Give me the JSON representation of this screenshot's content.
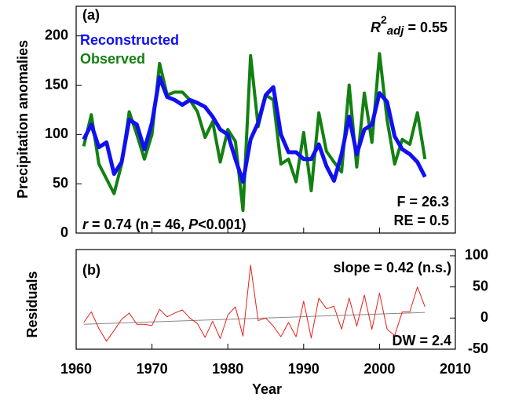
{
  "chart_data": [
    {
      "type": "line",
      "panel_label": "(a)",
      "y_label": "Precipitation anomalies",
      "xlim": [
        1960,
        2010
      ],
      "ylim": [
        0,
        230
      ],
      "yticks": [
        0,
        50,
        100,
        150,
        200
      ],
      "x": [
        1961,
        1962,
        1963,
        1964,
        1965,
        1966,
        1967,
        1968,
        1969,
        1970,
        1971,
        1972,
        1973,
        1974,
        1975,
        1976,
        1977,
        1978,
        1979,
        1980,
        1981,
        1982,
        1983,
        1984,
        1985,
        1986,
        1987,
        1988,
        1989,
        1990,
        1991,
        1992,
        1993,
        1994,
        1995,
        1996,
        1997,
        1998,
        1999,
        2000,
        2001,
        2002,
        2003,
        2004,
        2005,
        2006
      ],
      "series": [
        {
          "name": "Observed",
          "color": "#138012",
          "width": 4,
          "values": [
            88,
            120,
            70,
            55,
            40,
            70,
            123,
            100,
            75,
            100,
            172,
            140,
            143,
            143,
            135,
            123,
            97,
            113,
            72,
            105,
            93,
            23,
            180,
            108,
            140,
            135,
            70,
            75,
            52,
            102,
            43,
            122,
            83,
            72,
            62,
            150,
            67,
            142,
            92,
            182,
            115,
            70,
            95,
            90,
            122,
            75
          ]
        },
        {
          "name": "Reconstructed",
          "color": "#1010f0",
          "width": 5,
          "values": [
            95,
            110,
            87,
            92,
            60,
            72,
            115,
            110,
            85,
            112,
            158,
            138,
            135,
            130,
            135,
            132,
            128,
            118,
            105,
            100,
            75,
            52,
            95,
            112,
            140,
            148,
            100,
            82,
            82,
            75,
            75,
            90,
            68,
            53,
            80,
            118,
            80,
            105,
            110,
            142,
            133,
            98,
            85,
            80,
            72,
            57
          ]
        }
      ],
      "r2_text": [
        "R",
        "2",
        "adj",
        " = 0.55"
      ],
      "r_text": [
        "r",
        " = 0.74 (n = 46, ",
        "P",
        "<0.001)"
      ],
      "f_text": "F = 26.3",
      "re_text": "RE = 0.5"
    },
    {
      "type": "line",
      "panel_label": "(b)",
      "y_label": "Residuals",
      "x_label": "Year",
      "xlim": [
        1960,
        2010
      ],
      "xticks": [
        1960,
        1970,
        1980,
        1990,
        2000,
        2010
      ],
      "ylim": [
        -50,
        110
      ],
      "yticks": [
        -50,
        0,
        50,
        100
      ],
      "x": [
        1961,
        1962,
        1963,
        1964,
        1965,
        1966,
        1967,
        1968,
        1969,
        1970,
        1971,
        1972,
        1973,
        1974,
        1975,
        1976,
        1977,
        1978,
        1979,
        1980,
        1981,
        1982,
        1983,
        1984,
        1985,
        1986,
        1987,
        1988,
        1989,
        1990,
        1991,
        1992,
        1993,
        1994,
        1995,
        1996,
        1997,
        1998,
        1999,
        2000,
        2001,
        2002,
        2003,
        2004,
        2005,
        2006
      ],
      "series": [
        {
          "name": "Residuals",
          "color": "#e8201a",
          "width": 1,
          "values": [
            -7,
            10,
            -17,
            -37,
            -20,
            -2,
            8,
            -10,
            -10,
            -12,
            14,
            2,
            8,
            13,
            0,
            -9,
            -31,
            -5,
            -33,
            5,
            18,
            -29,
            85,
            -4,
            0,
            -13,
            -30,
            -7,
            -30,
            27,
            -32,
            32,
            15,
            19,
            -18,
            32,
            -13,
            37,
            -18,
            40,
            -18,
            -28,
            10,
            10,
            50,
            18
          ]
        }
      ],
      "trend": {
        "color": "#888888",
        "x": [
          1961,
          2006
        ],
        "values": [
          -10,
          9
        ]
      },
      "slope_text": "slope  = 0.42 (n.s.)",
      "dw_text": "DW = 2.4"
    }
  ]
}
